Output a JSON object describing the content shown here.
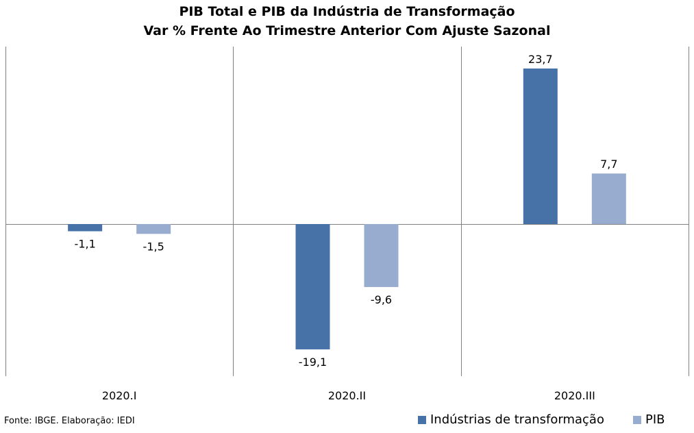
{
  "chart_data": {
    "type": "bar",
    "title": "PIB Total e PIB da Indústria de Transformação",
    "subtitle": "Var % Frente Ao Trimestre Anterior Com Ajuste Sazonal",
    "categories": [
      "2020.I",
      "2020.II",
      "2020.III"
    ],
    "series": [
      {
        "name": "Indústrias de transformação",
        "values": [
          -1.1,
          -19.1,
          23.7
        ],
        "labels": [
          "-1,1",
          "-19,1",
          "23,7"
        ],
        "color": "#4672A8"
      },
      {
        "name": "PIB",
        "values": [
          -1.5,
          -9.6,
          7.7
        ],
        "labels": [
          "-1,5",
          "-9,6",
          "7,7"
        ],
        "color": "#98ACD0"
      }
    ],
    "ylim": [
      -23.5,
      27.5
    ],
    "grid": "vertical separators between categories",
    "legend_position": "bottom-right"
  },
  "source": "Fonte: IBGE. Elaboração: IEDI"
}
